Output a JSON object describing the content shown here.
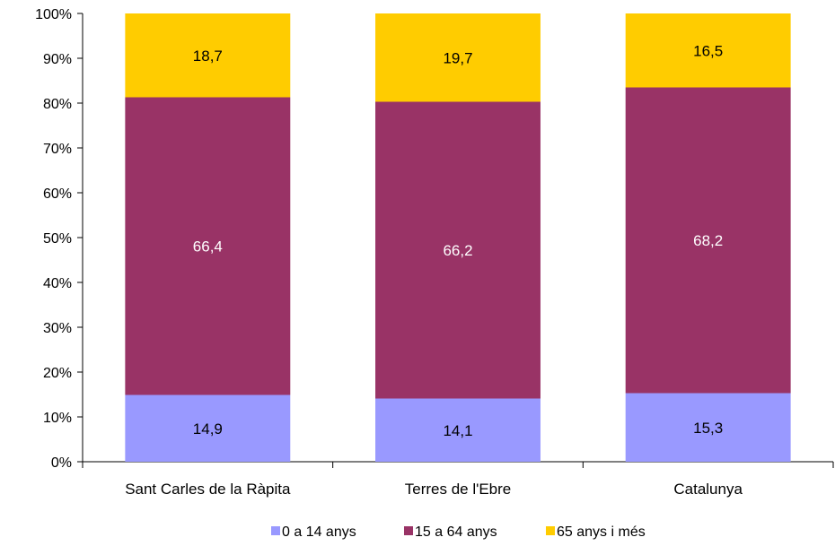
{
  "chart_data": {
    "type": "bar",
    "stacked": true,
    "title": "",
    "xlabel": "",
    "ylabel": "",
    "ylim": [
      0,
      100
    ],
    "y_tick_labels": [
      "0%",
      "10%",
      "20%",
      "30%",
      "40%",
      "50%",
      "60%",
      "70%",
      "80%",
      "90%",
      "100%"
    ],
    "categories": [
      "Sant Carles de la Ràpita",
      "Terres de l'Ebre",
      "Catalunya"
    ],
    "series": [
      {
        "name": "0 a 14 anys",
        "values": [
          14.9,
          14.1,
          15.3
        ],
        "labels": [
          "14,9",
          "14,1",
          "15,3"
        ],
        "color": "#9999FF",
        "label_color": "#000000"
      },
      {
        "name": "15 a 64 anys",
        "values": [
          66.4,
          66.2,
          68.2
        ],
        "labels": [
          "66,4",
          "66,2",
          "68,2"
        ],
        "color": "#993366",
        "label_color": "#FFFFFF"
      },
      {
        "name": "65 anys i més",
        "values": [
          18.7,
          19.7,
          16.5
        ],
        "labels": [
          "18,7",
          "19,7",
          "16,5"
        ],
        "color": "#FFCC00",
        "label_color": "#000000"
      }
    ],
    "grid": false,
    "legend_position": "bottom"
  }
}
